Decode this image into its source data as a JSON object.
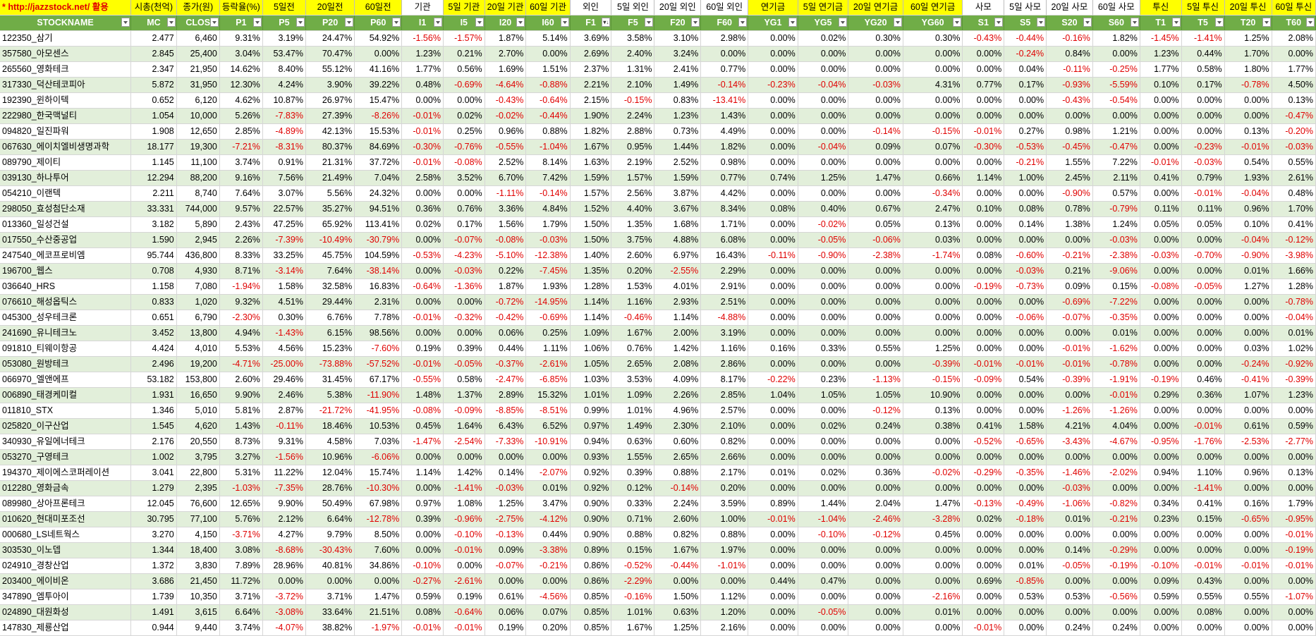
{
  "top_headers": [
    {
      "text": "* http://jazzstock.net/ 활용",
      "style": "url"
    },
    {
      "text": "시총(천억)",
      "style": "yel"
    },
    {
      "text": "종가(원)",
      "style": "yel"
    },
    {
      "text": "등락율(%)",
      "style": "yel"
    },
    {
      "text": "5일전",
      "style": "yel"
    },
    {
      "text": "20일전",
      "style": "yel"
    },
    {
      "text": "60일전",
      "style": "yel"
    },
    {
      "text": "기관",
      "style": "wht"
    },
    {
      "text": "5일 기관",
      "style": "yel"
    },
    {
      "text": "20일 기관",
      "style": "yel"
    },
    {
      "text": "60일 기관",
      "style": "yel"
    },
    {
      "text": "외인",
      "style": "wht"
    },
    {
      "text": "5일 외인",
      "style": "wht"
    },
    {
      "text": "20일 외인",
      "style": "wht"
    },
    {
      "text": "60일 외인",
      "style": "wht"
    },
    {
      "text": "연기금",
      "style": "yel"
    },
    {
      "text": "5일 연기금",
      "style": "yel"
    },
    {
      "text": "20일 연기금",
      "style": "yel"
    },
    {
      "text": "60일 연기금",
      "style": "yel"
    },
    {
      "text": "사모",
      "style": "wht"
    },
    {
      "text": "5일 사모",
      "style": "wht"
    },
    {
      "text": "20일 사모",
      "style": "wht"
    },
    {
      "text": "60일 사모",
      "style": "wht"
    },
    {
      "text": "투신",
      "style": "yel"
    },
    {
      "text": "5일 투신",
      "style": "yel"
    },
    {
      "text": "20일 투신",
      "style": "yel"
    },
    {
      "text": "60일 투신",
      "style": "yel"
    }
  ],
  "columns": [
    "STOCKNAME",
    "MC",
    "CLOS",
    "P1",
    "P5",
    "P20",
    "P60",
    "I1",
    "I5",
    "I20",
    "I60",
    "F1",
    "F5",
    "F20",
    "F60",
    "YG1",
    "YG5",
    "YG20",
    "YG60",
    "S1",
    "S5",
    "S20",
    "S60",
    "T1",
    "T5",
    "T20",
    "T60"
  ],
  "sorted_column": "F1",
  "rows": [
    [
      "122350_삼기",
      "2.477",
      "6,460",
      "9.31%",
      "3.19%",
      "24.47%",
      "54.92%",
      "-1.56%",
      "-1.57%",
      "1.87%",
      "5.14%",
      "3.69%",
      "3.58%",
      "3.10%",
      "2.98%",
      "0.00%",
      "0.02%",
      "0.30%",
      "0.30%",
      "-0.43%",
      "-0.44%",
      "-0.16%",
      "1.82%",
      "-1.45%",
      "-1.41%",
      "1.25%",
      "2.08%"
    ],
    [
      "357580_아모센스",
      "2.845",
      "25,400",
      "3.04%",
      "53.47%",
      "70.47%",
      "0.00%",
      "1.23%",
      "0.21%",
      "2.70%",
      "0.00%",
      "2.69%",
      "2.40%",
      "3.24%",
      "0.00%",
      "0.00%",
      "0.00%",
      "0.00%",
      "0.00%",
      "0.00%",
      "-0.24%",
      "0.84%",
      "0.00%",
      "1.23%",
      "0.44%",
      "1.70%",
      "0.00%"
    ],
    [
      "265560_영화테크",
      "2.347",
      "21,950",
      "14.62%",
      "8.40%",
      "55.12%",
      "41.16%",
      "1.77%",
      "0.56%",
      "1.69%",
      "1.51%",
      "2.37%",
      "1.31%",
      "2.41%",
      "0.77%",
      "0.00%",
      "0.00%",
      "0.00%",
      "0.00%",
      "0.00%",
      "0.04%",
      "-0.11%",
      "-0.25%",
      "1.77%",
      "0.58%",
      "1.80%",
      "1.77%"
    ],
    [
      "317330_덕산테코피아",
      "5.872",
      "31,950",
      "12.30%",
      "4.24%",
      "3.90%",
      "39.22%",
      "0.48%",
      "-0.69%",
      "-4.64%",
      "-0.88%",
      "2.21%",
      "2.10%",
      "1.49%",
      "-0.14%",
      "-0.23%",
      "-0.04%",
      "-0.03%",
      "4.31%",
      "0.77%",
      "0.17%",
      "-0.93%",
      "-5.59%",
      "0.10%",
      "0.17%",
      "-0.78%",
      "4.50%"
    ],
    [
      "192390_윈하이텍",
      "0.652",
      "6,120",
      "4.62%",
      "10.87%",
      "26.97%",
      "15.47%",
      "0.00%",
      "0.00%",
      "-0.43%",
      "-0.64%",
      "2.15%",
      "-0.15%",
      "0.83%",
      "-13.41%",
      "0.00%",
      "0.00%",
      "0.00%",
      "0.00%",
      "0.00%",
      "0.00%",
      "-0.43%",
      "-0.54%",
      "0.00%",
      "0.00%",
      "0.00%",
      "0.13%"
    ],
    [
      "222980_한국맥널티",
      "1.054",
      "10,000",
      "5.26%",
      "-7.83%",
      "27.39%",
      "-8.26%",
      "-0.01%",
      "0.02%",
      "-0.02%",
      "-0.44%",
      "1.90%",
      "2.24%",
      "1.23%",
      "1.43%",
      "0.00%",
      "0.00%",
      "0.00%",
      "0.00%",
      "0.00%",
      "0.00%",
      "0.00%",
      "0.00%",
      "0.00%",
      "0.00%",
      "0.00%",
      "-0.47%"
    ],
    [
      "094820_일진파워",
      "1.908",
      "12,650",
      "2.85%",
      "-4.89%",
      "42.13%",
      "15.53%",
      "-0.01%",
      "0.25%",
      "0.96%",
      "0.88%",
      "1.82%",
      "2.88%",
      "0.73%",
      "4.49%",
      "0.00%",
      "0.00%",
      "-0.14%",
      "-0.15%",
      "-0.01%",
      "0.27%",
      "0.98%",
      "1.21%",
      "0.00%",
      "0.00%",
      "0.13%",
      "-0.20%"
    ],
    [
      "067630_에이치엘비생명과학",
      "18.177",
      "19,300",
      "-7.21%",
      "-8.31%",
      "80.37%",
      "84.69%",
      "-0.30%",
      "-0.76%",
      "-0.55%",
      "-1.04%",
      "1.67%",
      "0.95%",
      "1.44%",
      "1.82%",
      "0.00%",
      "-0.04%",
      "0.09%",
      "0.07%",
      "-0.30%",
      "-0.53%",
      "-0.45%",
      "-0.47%",
      "0.00%",
      "-0.23%",
      "-0.01%",
      "-0.03%"
    ],
    [
      "089790_제이티",
      "1.145",
      "11,100",
      "3.74%",
      "0.91%",
      "21.31%",
      "37.72%",
      "-0.01%",
      "-0.08%",
      "2.52%",
      "8.14%",
      "1.63%",
      "2.19%",
      "2.52%",
      "0.98%",
      "0.00%",
      "0.00%",
      "0.00%",
      "0.00%",
      "0.00%",
      "-0.21%",
      "1.55%",
      "7.22%",
      "-0.01%",
      "-0.03%",
      "0.54%",
      "0.55%"
    ],
    [
      "039130_하나투어",
      "12.294",
      "88,200",
      "9.16%",
      "7.56%",
      "21.49%",
      "7.04%",
      "2.58%",
      "3.52%",
      "6.70%",
      "7.42%",
      "1.59%",
      "1.57%",
      "1.59%",
      "0.77%",
      "0.74%",
      "1.25%",
      "1.47%",
      "0.66%",
      "1.14%",
      "1.00%",
      "2.45%",
      "2.11%",
      "0.41%",
      "0.79%",
      "1.93%",
      "2.61%"
    ],
    [
      "054210_이랜텍",
      "2.211",
      "8,740",
      "7.64%",
      "3.07%",
      "5.56%",
      "24.32%",
      "0.00%",
      "0.00%",
      "-1.11%",
      "-0.14%",
      "1.57%",
      "2.56%",
      "3.87%",
      "4.42%",
      "0.00%",
      "0.00%",
      "0.00%",
      "-0.34%",
      "0.00%",
      "0.00%",
      "-0.90%",
      "0.57%",
      "0.00%",
      "-0.01%",
      "-0.04%",
      "0.48%"
    ],
    [
      "298050_효성첨단소재",
      "33.331",
      "744,000",
      "9.57%",
      "22.57%",
      "35.27%",
      "94.51%",
      "0.36%",
      "0.76%",
      "3.36%",
      "4.84%",
      "1.52%",
      "4.40%",
      "3.67%",
      "8.34%",
      "0.08%",
      "0.40%",
      "0.67%",
      "2.47%",
      "0.10%",
      "0.08%",
      "0.78%",
      "-0.79%",
      "0.11%",
      "0.11%",
      "0.96%",
      "1.70%"
    ],
    [
      "013360_일성건설",
      "3.182",
      "5,890",
      "2.43%",
      "47.25%",
      "65.92%",
      "113.41%",
      "0.02%",
      "0.17%",
      "1.56%",
      "1.79%",
      "1.50%",
      "1.35%",
      "1.68%",
      "1.71%",
      "0.00%",
      "-0.02%",
      "0.05%",
      "0.13%",
      "0.00%",
      "0.14%",
      "1.38%",
      "1.24%",
      "0.05%",
      "0.05%",
      "0.10%",
      "0.41%"
    ],
    [
      "017550_수산중공업",
      "1.590",
      "2,945",
      "2.26%",
      "-7.39%",
      "-10.49%",
      "-30.79%",
      "0.00%",
      "-0.07%",
      "-0.08%",
      "-0.03%",
      "1.50%",
      "3.75%",
      "4.88%",
      "6.08%",
      "0.00%",
      "-0.05%",
      "-0.06%",
      "0.03%",
      "0.00%",
      "0.00%",
      "0.00%",
      "-0.03%",
      "0.00%",
      "0.00%",
      "-0.04%",
      "-0.12%"
    ],
    [
      "247540_에코프로비엠",
      "95.744",
      "436,800",
      "8.33%",
      "33.25%",
      "45.75%",
      "104.59%",
      "-0.53%",
      "-4.23%",
      "-5.10%",
      "-12.38%",
      "1.40%",
      "2.60%",
      "6.97%",
      "16.43%",
      "-0.11%",
      "-0.90%",
      "-2.38%",
      "-1.74%",
      "0.08%",
      "-0.60%",
      "-0.21%",
      "-2.38%",
      "-0.03%",
      "-0.70%",
      "-0.90%",
      "-3.98%"
    ],
    [
      "196700_웹스",
      "0.708",
      "4,930",
      "8.71%",
      "-3.14%",
      "7.64%",
      "-38.14%",
      "0.00%",
      "-0.03%",
      "0.22%",
      "-7.45%",
      "1.35%",
      "0.20%",
      "-2.55%",
      "2.29%",
      "0.00%",
      "0.00%",
      "0.00%",
      "0.00%",
      "0.00%",
      "-0.03%",
      "0.21%",
      "-9.06%",
      "0.00%",
      "0.00%",
      "0.01%",
      "1.66%"
    ],
    [
      "036640_HRS",
      "1.158",
      "7,080",
      "-1.94%",
      "1.58%",
      "32.58%",
      "16.83%",
      "-0.64%",
      "-1.36%",
      "1.87%",
      "1.93%",
      "1.28%",
      "1.53%",
      "4.01%",
      "2.91%",
      "0.00%",
      "0.00%",
      "0.00%",
      "0.00%",
      "-0.19%",
      "-0.73%",
      "0.09%",
      "0.15%",
      "-0.08%",
      "-0.05%",
      "1.27%",
      "1.28%"
    ],
    [
      "076610_해성옵틱스",
      "0.833",
      "1,020",
      "9.32%",
      "4.51%",
      "29.44%",
      "2.31%",
      "0.00%",
      "0.00%",
      "-0.72%",
      "-14.95%",
      "1.14%",
      "1.16%",
      "2.93%",
      "2.51%",
      "0.00%",
      "0.00%",
      "0.00%",
      "0.00%",
      "0.00%",
      "0.00%",
      "-0.69%",
      "-7.22%",
      "0.00%",
      "0.00%",
      "0.00%",
      "-0.78%"
    ],
    [
      "045300_성우테크론",
      "0.651",
      "6,790",
      "-2.30%",
      "0.30%",
      "6.76%",
      "7.78%",
      "-0.01%",
      "-0.32%",
      "-0.42%",
      "-0.69%",
      "1.14%",
      "-0.46%",
      "1.14%",
      "-4.88%",
      "0.00%",
      "0.00%",
      "0.00%",
      "0.00%",
      "0.00%",
      "-0.06%",
      "-0.07%",
      "-0.35%",
      "0.00%",
      "0.00%",
      "0.00%",
      "-0.04%"
    ],
    [
      "241690_유니테크노",
      "3.452",
      "13,800",
      "4.94%",
      "-1.43%",
      "6.15%",
      "98.56%",
      "0.00%",
      "0.00%",
      "0.06%",
      "0.25%",
      "1.09%",
      "1.67%",
      "2.00%",
      "3.19%",
      "0.00%",
      "0.00%",
      "0.00%",
      "0.00%",
      "0.00%",
      "0.00%",
      "0.00%",
      "0.01%",
      "0.00%",
      "0.00%",
      "0.00%",
      "0.01%"
    ],
    [
      "091810_티웨이항공",
      "4.424",
      "4,010",
      "5.53%",
      "4.56%",
      "15.23%",
      "-7.60%",
      "0.19%",
      "0.39%",
      "0.44%",
      "1.11%",
      "1.06%",
      "0.76%",
      "1.42%",
      "1.16%",
      "0.16%",
      "0.33%",
      "0.55%",
      "1.25%",
      "0.00%",
      "0.00%",
      "-0.01%",
      "-1.62%",
      "0.00%",
      "0.00%",
      "0.03%",
      "1.02%"
    ],
    [
      "053080_원방테크",
      "2.496",
      "19,200",
      "-4.71%",
      "-25.00%",
      "-73.88%",
      "-57.52%",
      "-0.01%",
      "-0.05%",
      "-0.37%",
      "-2.61%",
      "1.05%",
      "2.65%",
      "2.08%",
      "2.86%",
      "0.00%",
      "0.00%",
      "0.00%",
      "-0.39%",
      "-0.01%",
      "-0.01%",
      "-0.01%",
      "-0.78%",
      "0.00%",
      "0.00%",
      "-0.24%",
      "-0.92%"
    ],
    [
      "066970_엘앤에프",
      "53.182",
      "153,800",
      "2.60%",
      "29.46%",
      "31.45%",
      "67.17%",
      "-0.55%",
      "0.58%",
      "-2.47%",
      "-6.85%",
      "1.03%",
      "3.53%",
      "4.09%",
      "8.17%",
      "-0.22%",
      "0.23%",
      "-1.13%",
      "-0.15%",
      "-0.09%",
      "0.54%",
      "-0.39%",
      "-1.91%",
      "-0.19%",
      "0.46%",
      "-0.41%",
      "-0.39%"
    ],
    [
      "006890_태경케미컬",
      "1.931",
      "16,650",
      "9.90%",
      "2.46%",
      "5.38%",
      "-11.90%",
      "1.48%",
      "1.37%",
      "2.89%",
      "15.32%",
      "1.01%",
      "1.09%",
      "2.26%",
      "2.85%",
      "1.04%",
      "1.05%",
      "1.05%",
      "10.90%",
      "0.00%",
      "0.00%",
      "0.00%",
      "-0.01%",
      "0.29%",
      "0.36%",
      "1.07%",
      "1.23%"
    ],
    [
      "011810_STX",
      "1.346",
      "5,010",
      "5.81%",
      "2.87%",
      "-21.72%",
      "-41.95%",
      "-0.08%",
      "-0.09%",
      "-8.85%",
      "-8.51%",
      "0.99%",
      "1.01%",
      "4.96%",
      "2.57%",
      "0.00%",
      "0.00%",
      "-0.12%",
      "0.13%",
      "0.00%",
      "0.00%",
      "-1.26%",
      "-1.26%",
      "0.00%",
      "0.00%",
      "0.00%",
      "0.00%"
    ],
    [
      "025820_이구산업",
      "1.545",
      "4,620",
      "1.43%",
      "-0.11%",
      "18.46%",
      "10.53%",
      "0.45%",
      "1.64%",
      "6.43%",
      "6.52%",
      "0.97%",
      "1.49%",
      "2.30%",
      "2.10%",
      "0.00%",
      "0.02%",
      "0.24%",
      "0.38%",
      "0.41%",
      "1.58%",
      "4.21%",
      "4.04%",
      "0.00%",
      "-0.01%",
      "0.61%",
      "0.59%"
    ],
    [
      "340930_유일에너테크",
      "2.176",
      "20,550",
      "8.73%",
      "9.31%",
      "4.58%",
      "7.03%",
      "-1.47%",
      "-2.54%",
      "-7.33%",
      "-10.91%",
      "0.94%",
      "0.63%",
      "0.60%",
      "0.82%",
      "0.00%",
      "0.00%",
      "0.00%",
      "0.00%",
      "-0.52%",
      "-0.65%",
      "-3.43%",
      "-4.67%",
      "-0.95%",
      "-1.76%",
      "-2.53%",
      "-2.77%"
    ],
    [
      "053270_구영테크",
      "1.002",
      "3,795",
      "3.27%",
      "-1.56%",
      "10.96%",
      "-6.06%",
      "0.00%",
      "0.00%",
      "0.00%",
      "0.00%",
      "0.93%",
      "1.55%",
      "2.65%",
      "2.66%",
      "0.00%",
      "0.00%",
      "0.00%",
      "0.00%",
      "0.00%",
      "0.00%",
      "0.00%",
      "0.00%",
      "0.00%",
      "0.00%",
      "0.00%",
      "0.00%"
    ],
    [
      "194370_제이에스코퍼레이션",
      "3.041",
      "22,800",
      "5.31%",
      "11.22%",
      "12.04%",
      "15.74%",
      "1.14%",
      "1.42%",
      "0.14%",
      "-2.07%",
      "0.92%",
      "0.39%",
      "0.88%",
      "2.17%",
      "0.01%",
      "0.02%",
      "0.36%",
      "-0.02%",
      "-0.29%",
      "-0.35%",
      "-1.46%",
      "-2.02%",
      "0.94%",
      "1.10%",
      "0.96%",
      "0.13%"
    ],
    [
      "012280_영화금속",
      "1.279",
      "2,395",
      "-1.03%",
      "-7.35%",
      "28.76%",
      "-10.30%",
      "0.00%",
      "-1.41%",
      "-0.03%",
      "0.01%",
      "0.92%",
      "0.12%",
      "-0.14%",
      "0.20%",
      "0.00%",
      "0.00%",
      "0.00%",
      "0.00%",
      "0.00%",
      "0.00%",
      "-0.03%",
      "0.00%",
      "0.00%",
      "-1.41%",
      "0.00%",
      "0.00%"
    ],
    [
      "089980_상아프론테크",
      "12.045",
      "76,600",
      "12.65%",
      "9.90%",
      "50.49%",
      "67.98%",
      "0.97%",
      "1.08%",
      "1.25%",
      "3.47%",
      "0.90%",
      "0.33%",
      "2.24%",
      "3.59%",
      "0.89%",
      "1.44%",
      "2.04%",
      "1.47%",
      "-0.13%",
      "-0.49%",
      "-1.06%",
      "-0.82%",
      "0.34%",
      "0.41%",
      "0.16%",
      "1.79%"
    ],
    [
      "010620_현대미포조선",
      "30.795",
      "77,100",
      "5.76%",
      "2.12%",
      "6.64%",
      "-12.78%",
      "0.39%",
      "-0.96%",
      "-2.75%",
      "-4.12%",
      "0.90%",
      "0.71%",
      "2.60%",
      "1.00%",
      "-0.01%",
      "-1.04%",
      "-2.46%",
      "-3.28%",
      "0.02%",
      "-0.18%",
      "0.01%",
      "-0.21%",
      "0.23%",
      "0.15%",
      "-0.65%",
      "-0.95%"
    ],
    [
      "000680_LS네트웍스",
      "3.270",
      "4,150",
      "-3.71%",
      "4.27%",
      "9.79%",
      "8.50%",
      "0.00%",
      "-0.10%",
      "-0.13%",
      "0.44%",
      "0.90%",
      "0.88%",
      "0.82%",
      "0.88%",
      "0.00%",
      "-0.10%",
      "-0.12%",
      "0.45%",
      "0.00%",
      "0.00%",
      "0.00%",
      "0.00%",
      "0.00%",
      "0.00%",
      "0.00%",
      "-0.01%"
    ],
    [
      "303530_이노뎁",
      "1.344",
      "18,400",
      "3.08%",
      "-8.68%",
      "-30.43%",
      "7.60%",
      "0.00%",
      "-0.01%",
      "0.09%",
      "-3.38%",
      "0.89%",
      "0.15%",
      "1.67%",
      "1.97%",
      "0.00%",
      "0.00%",
      "0.00%",
      "0.00%",
      "0.00%",
      "0.00%",
      "0.14%",
      "-0.29%",
      "0.00%",
      "0.00%",
      "0.00%",
      "-0.19%"
    ],
    [
      "024910_경창산업",
      "1.372",
      "3,830",
      "7.89%",
      "28.96%",
      "40.81%",
      "34.86%",
      "-0.10%",
      "0.00%",
      "-0.07%",
      "-0.21%",
      "0.86%",
      "-0.52%",
      "-0.44%",
      "-1.01%",
      "0.00%",
      "0.00%",
      "0.00%",
      "0.00%",
      "0.00%",
      "0.01%",
      "-0.05%",
      "-0.19%",
      "-0.10%",
      "-0.01%",
      "-0.01%",
      "-0.01%"
    ],
    [
      "203400_에이비온",
      "3.686",
      "21,450",
      "11.72%",
      "0.00%",
      "0.00%",
      "0.00%",
      "-0.27%",
      "-2.61%",
      "0.00%",
      "0.00%",
      "0.86%",
      "-2.29%",
      "0.00%",
      "0.00%",
      "0.44%",
      "0.47%",
      "0.00%",
      "0.00%",
      "0.69%",
      "-0.85%",
      "0.00%",
      "0.00%",
      "0.09%",
      "0.43%",
      "0.00%",
      "0.00%"
    ],
    [
      "347890_엠투아이",
      "1.739",
      "10,350",
      "3.71%",
      "-3.72%",
      "3.71%",
      "1.47%",
      "0.59%",
      "0.19%",
      "0.61%",
      "-4.56%",
      "0.85%",
      "-0.16%",
      "1.50%",
      "1.12%",
      "0.00%",
      "0.00%",
      "0.00%",
      "-2.16%",
      "0.00%",
      "0.53%",
      "0.53%",
      "-0.56%",
      "0.59%",
      "0.55%",
      "0.55%",
      "-1.07%"
    ],
    [
      "024890_대원화성",
      "1.491",
      "3,615",
      "6.64%",
      "-3.08%",
      "33.64%",
      "21.51%",
      "0.08%",
      "-0.64%",
      "0.06%",
      "0.07%",
      "0.85%",
      "1.01%",
      "0.63%",
      "1.20%",
      "0.00%",
      "-0.05%",
      "0.00%",
      "0.01%",
      "0.00%",
      "0.00%",
      "0.00%",
      "0.00%",
      "0.00%",
      "0.08%",
      "0.00%",
      "0.00%"
    ],
    [
      "147830_제룡산업",
      "0.944",
      "9,440",
      "3.74%",
      "-4.07%",
      "38.82%",
      "-1.97%",
      "-0.01%",
      "-0.01%",
      "0.19%",
      "0.20%",
      "0.85%",
      "1.67%",
      "1.25%",
      "2.16%",
      "0.00%",
      "0.00%",
      "0.00%",
      "0.00%",
      "-0.01%",
      "0.00%",
      "0.24%",
      "0.24%",
      "0.00%",
      "0.00%",
      "0.00%",
      "0.00%"
    ]
  ]
}
